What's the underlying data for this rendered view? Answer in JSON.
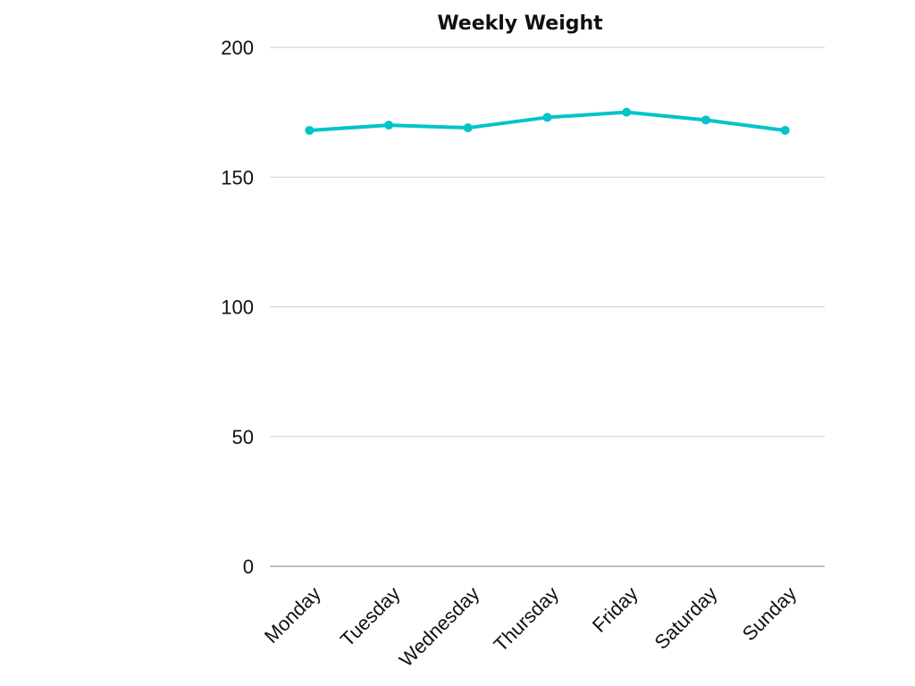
{
  "chart_data": {
    "type": "line",
    "title": "Weekly Weight",
    "xlabel": "",
    "ylabel": "",
    "categories": [
      "Monday",
      "Tuesday",
      "Wednesday",
      "Thursday",
      "Friday",
      "Saturday",
      "Sunday"
    ],
    "series": [
      {
        "values": [
          168,
          170,
          169,
          173,
          175,
          172,
          168
        ],
        "color": "#00c4c8"
      }
    ],
    "ylim": [
      0,
      200
    ],
    "yticks": [
      "0",
      "50",
      "100",
      "150",
      "200"
    ],
    "grid": true,
    "legend": "none",
    "x_tick_rotation": "-45deg"
  }
}
